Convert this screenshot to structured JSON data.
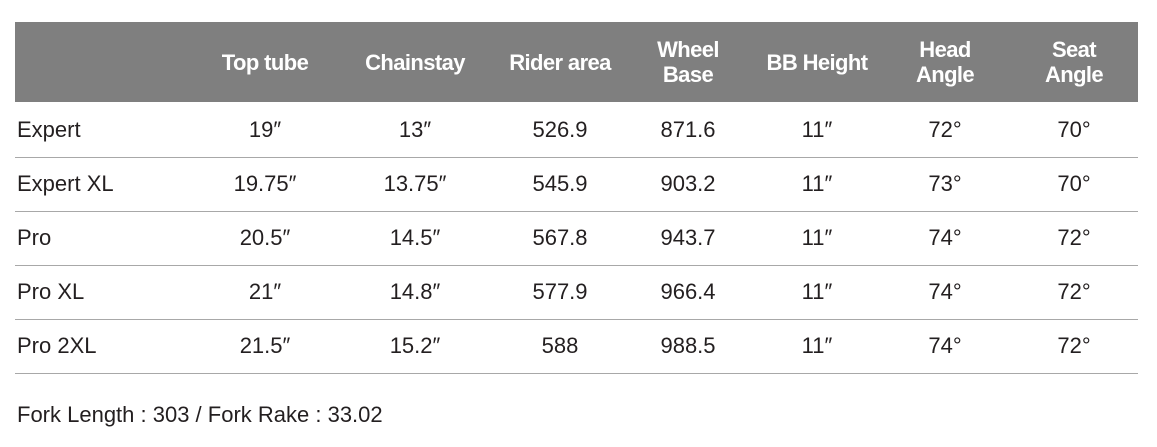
{
  "table": {
    "columns": [
      "Top tube",
      "Chainstay",
      "Rider area",
      "Wheel Base",
      "BB Height",
      "Head Angle",
      "Seat Angle"
    ],
    "rows": [
      [
        "Expert",
        "19″",
        "13″",
        "526.9",
        "871.6",
        "11″",
        "72°",
        "70°"
      ],
      [
        "Expert XL",
        "19.75″",
        "13.75″",
        "545.9",
        "903.2",
        "11″",
        "73°",
        "70°"
      ],
      [
        "Pro",
        "20.5″",
        "14.5″",
        "567.8",
        "943.7",
        "11″",
        "74°",
        "72°"
      ],
      [
        "Pro XL",
        "21″",
        "14.8″",
        "577.9",
        "966.4",
        "11″",
        "74°",
        "72°"
      ],
      [
        "Pro 2XL",
        "21.5″",
        "15.2″",
        "588",
        "988.5",
        "11″",
        "74°",
        "72°"
      ]
    ]
  },
  "footnote": "Fork Length : 303 / Fork Rake : 33.02"
}
